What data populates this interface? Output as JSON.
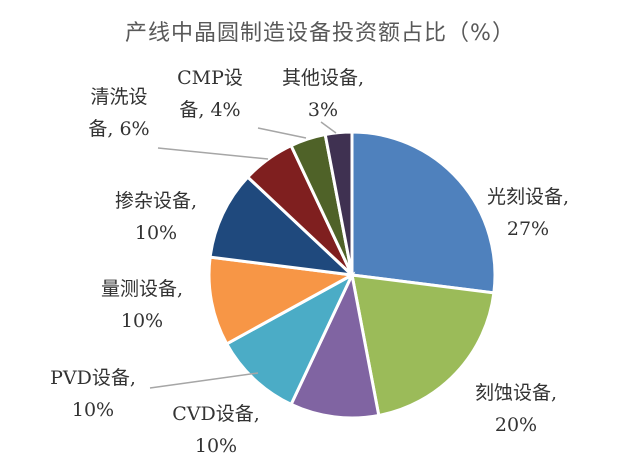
{
  "chart_data": {
    "type": "pie",
    "title": "产线中晶圆制造设备投资额占比（%）",
    "unit": "%",
    "slices": [
      {
        "name": "光刻设备",
        "value": 27,
        "color": "#4F81BD",
        "label": [
          "光刻设备,",
          "27%"
        ]
      },
      {
        "name": "刻蚀设备",
        "value": 20,
        "color": "#9BBB59",
        "label": [
          "刻蚀设备,",
          "20%"
        ]
      },
      {
        "name": "CVD设备",
        "value": 10,
        "color": "#8064A2",
        "label": [
          "CVD设备,",
          "10%"
        ]
      },
      {
        "name": "PVD设备",
        "value": 10,
        "color": "#4BACC6",
        "label": [
          "PVD设备,",
          "10%"
        ]
      },
      {
        "name": "量测设备",
        "value": 10,
        "color": "#F79646",
        "label": [
          "量测设备,",
          "10%"
        ]
      },
      {
        "name": "掺杂设备",
        "value": 10,
        "color": "#1F497D",
        "label": [
          "掺杂设备,",
          "10%"
        ]
      },
      {
        "name": "清洗设备",
        "value": 6,
        "color": "#7F1F1F",
        "label": [
          "清洗设",
          "备, 6%"
        ]
      },
      {
        "name": "CMP设备",
        "value": 4,
        "color": "#4F6228",
        "label": [
          "CMP设",
          "备, 4%"
        ]
      },
      {
        "name": "其他设备",
        "value": 3,
        "color": "#3F3151",
        "label": [
          "其他设备,",
          "3%"
        ]
      }
    ]
  }
}
